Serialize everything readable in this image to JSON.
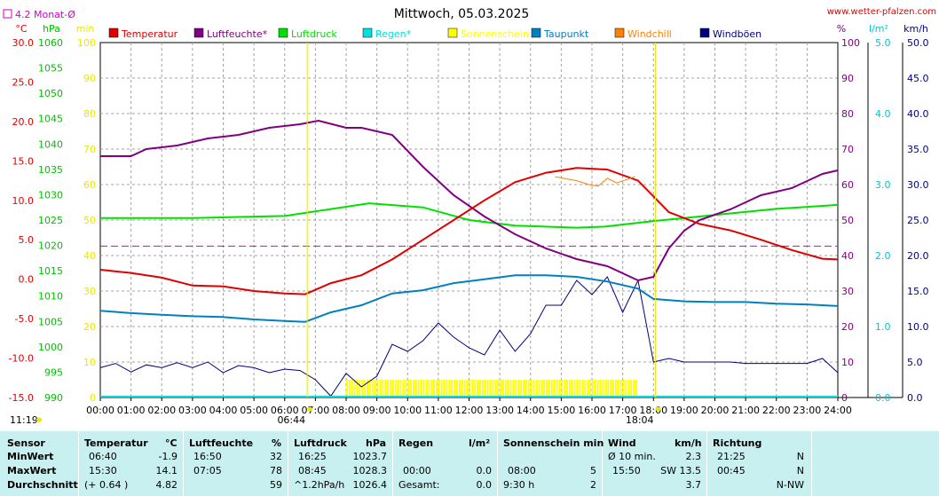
{
  "header": {
    "title": "Mittwoch, 05.03.2025",
    "site": "www.wetter-pfalzen.com",
    "avg_legend": "4.2 Monat-Ø"
  },
  "axes": {
    "temp_unit": "°C",
    "temp_ticks": [
      "30.0",
      "25.0",
      "20.0",
      "15.0",
      "10.0",
      "5.0",
      "0.0",
      "-5.0",
      "-10.0",
      "-15.0"
    ],
    "hpa_unit": "hPa",
    "hpa_ticks": [
      "1060",
      "1055",
      "1050",
      "1045",
      "1040",
      "1035",
      "1030",
      "1025",
      "1020",
      "1015",
      "1010",
      "1005",
      "1000",
      "995",
      "990"
    ],
    "min_unit": "min",
    "min_ticks": [
      "100",
      "90",
      "80",
      "70",
      "60",
      "50",
      "40",
      "30",
      "20",
      "10",
      "0"
    ],
    "pct_unit": "%",
    "pct_ticks": [
      "100",
      "90",
      "80",
      "70",
      "60",
      "50",
      "40",
      "30",
      "20",
      "10",
      "0"
    ],
    "rain_unit": "l/m²",
    "rain_ticks": [
      "5.0",
      "4.0",
      "3.0",
      "2.0",
      "1.0",
      "0.0"
    ],
    "kmh_unit": "km/h",
    "kmh_ticks": [
      "50.0",
      "45.0",
      "40.0",
      "35.0",
      "30.0",
      "25.0",
      "20.0",
      "15.0",
      "10.0",
      "5.0",
      "0.0"
    ],
    "x_ticks": [
      "00:00",
      "01:00",
      "02:00",
      "03:00",
      "04:00",
      "05:00",
      "06:00",
      "07:00",
      "08:00",
      "09:00",
      "10:00",
      "11:00",
      "12:00",
      "13:00",
      "14:00",
      "15:00",
      "16:00",
      "17:00",
      "18:00",
      "19:00",
      "20:00",
      "21:00",
      "22:00",
      "23:00",
      "24:00"
    ],
    "markers": {
      "moon": "11:19",
      "sunrise": "06:44",
      "sunset": "18:04"
    }
  },
  "legend": [
    {
      "label": "Temperatur",
      "color": "#e00000"
    },
    {
      "label": "Luftfeuchte*",
      "color": "#800080"
    },
    {
      "label": "Luftdruck",
      "color": "#00e000"
    },
    {
      "label": "Regen*",
      "color": "#00e0e0"
    },
    {
      "label": "Sonnenschein",
      "color": "#ffff00"
    },
    {
      "label": "Taupunkt",
      "color": "#0080c0"
    },
    {
      "label": "Windchill",
      "color": "#ff8000"
    },
    {
      "label": "Windböen",
      "color": "#000080"
    }
  ],
  "chart_data": {
    "type": "line",
    "x_range": [
      "00:00",
      "24:00"
    ],
    "y_ranges": {
      "temperature_c": [
        -15,
        30
      ],
      "pressure_hpa": [
        990,
        1060
      ],
      "sunshine_min": [
        0,
        100
      ],
      "humidity_pct": [
        0,
        100
      ],
      "rain_lm2": [
        0,
        5
      ],
      "wind_kmh": [
        0,
        50
      ]
    },
    "month_avg_temperature": 4.2,
    "grid": true,
    "series": [
      {
        "name": "Temperatur",
        "unit": "°C",
        "color": "#e00000",
        "points": [
          [
            0,
            1.2
          ],
          [
            1,
            0.8
          ],
          [
            2,
            0.2
          ],
          [
            3,
            -0.8
          ],
          [
            4,
            -0.9
          ],
          [
            5,
            -1.5
          ],
          [
            6,
            -1.8
          ],
          [
            6.67,
            -1.9
          ],
          [
            7.5,
            -0.5
          ],
          [
            8.5,
            0.5
          ],
          [
            9.5,
            2.5
          ],
          [
            10.5,
            5.0
          ],
          [
            11.5,
            7.5
          ],
          [
            12.5,
            10.0
          ],
          [
            13.5,
            12.3
          ],
          [
            14.5,
            13.5
          ],
          [
            15.5,
            14.1
          ],
          [
            16.5,
            13.9
          ],
          [
            17.5,
            12.5
          ],
          [
            18,
            10.5
          ],
          [
            18.5,
            8.5
          ],
          [
            19.5,
            7.0
          ],
          [
            20.5,
            6.2
          ],
          [
            21.5,
            5.0
          ],
          [
            22.5,
            3.7
          ],
          [
            23.5,
            2.6
          ],
          [
            24,
            2.5
          ]
        ]
      },
      {
        "name": "Luftfeuchte*",
        "unit": "%",
        "color": "#800080",
        "points": [
          [
            0,
            68
          ],
          [
            1,
            68
          ],
          [
            1.5,
            70
          ],
          [
            2.5,
            71
          ],
          [
            3.5,
            73
          ],
          [
            4.5,
            74
          ],
          [
            5.5,
            76
          ],
          [
            6.5,
            77
          ],
          [
            7.1,
            78
          ],
          [
            8,
            76
          ],
          [
            8.5,
            76
          ],
          [
            9.5,
            74
          ],
          [
            10.5,
            65
          ],
          [
            11.5,
            57
          ],
          [
            12.5,
            51
          ],
          [
            13.5,
            46
          ],
          [
            14.5,
            42
          ],
          [
            15.5,
            39
          ],
          [
            16.5,
            37
          ],
          [
            17.5,
            33
          ],
          [
            18,
            34
          ],
          [
            18.5,
            42
          ],
          [
            19,
            47
          ],
          [
            19.5,
            50
          ],
          [
            20.5,
            53
          ],
          [
            21.5,
            57
          ],
          [
            22.5,
            59
          ],
          [
            23,
            61
          ],
          [
            23.5,
            63
          ],
          [
            24,
            64
          ]
        ]
      },
      {
        "name": "Luftdruck",
        "unit": "hPa",
        "color": "#00e000",
        "points": [
          [
            0,
            1025.4
          ],
          [
            3,
            1025.4
          ],
          [
            6,
            1025.8
          ],
          [
            8.75,
            1028.3
          ],
          [
            10.5,
            1027.5
          ],
          [
            12,
            1025.0
          ],
          [
            13.5,
            1023.9
          ],
          [
            15.5,
            1023.5
          ],
          [
            16.42,
            1023.7
          ],
          [
            18,
            1024.8
          ],
          [
            20,
            1026.0
          ],
          [
            22,
            1027.2
          ],
          [
            24,
            1028.0
          ]
        ]
      },
      {
        "name": "Taupunkt",
        "unit": "°C",
        "color": "#0080c0",
        "points": [
          [
            0,
            -4.0
          ],
          [
            1,
            -4.3
          ],
          [
            2,
            -4.5
          ],
          [
            3,
            -4.7
          ],
          [
            4,
            -4.8
          ],
          [
            5,
            -5.1
          ],
          [
            6,
            -5.3
          ],
          [
            6.67,
            -5.4
          ],
          [
            7.5,
            -4.2
          ],
          [
            8.5,
            -3.3
          ],
          [
            9.5,
            -1.8
          ],
          [
            10.5,
            -1.4
          ],
          [
            11.5,
            -0.5
          ],
          [
            12.5,
            0.0
          ],
          [
            13.5,
            0.5
          ],
          [
            14.5,
            0.5
          ],
          [
            15.5,
            0.3
          ],
          [
            16.5,
            -0.3
          ],
          [
            17.5,
            -1.2
          ],
          [
            18,
            -2.5
          ],
          [
            19,
            -2.8
          ],
          [
            20,
            -2.9
          ],
          [
            21,
            -2.9
          ],
          [
            22,
            -3.1
          ],
          [
            23,
            -3.2
          ],
          [
            24,
            -3.4
          ]
        ]
      },
      {
        "name": "Windchill",
        "unit": "°C",
        "color": "#ff8000",
        "points": [
          [
            14.8,
            13.0
          ],
          [
            15.2,
            12.7
          ],
          [
            15.5,
            12.5
          ],
          [
            15.9,
            12.0
          ],
          [
            16.2,
            11.8
          ],
          [
            16.5,
            12.8
          ],
          [
            16.8,
            12.2
          ],
          [
            17.1,
            12.6
          ],
          [
            17.4,
            13.0
          ]
        ]
      },
      {
        "name": "Windböen",
        "unit": "km/h",
        "color": "#000080",
        "points": [
          [
            0,
            4.2
          ],
          [
            0.5,
            4.8
          ],
          [
            1,
            3.6
          ],
          [
            1.5,
            4.6
          ],
          [
            2,
            4.2
          ],
          [
            2.5,
            4.9
          ],
          [
            3,
            4.2
          ],
          [
            3.5,
            5.0
          ],
          [
            4,
            3.5
          ],
          [
            4.5,
            4.5
          ],
          [
            5,
            4.2
          ],
          [
            5.5,
            3.5
          ],
          [
            6,
            4.0
          ],
          [
            6.5,
            3.8
          ],
          [
            7,
            2.5
          ],
          [
            7.5,
            0.2
          ],
          [
            8,
            3.4
          ],
          [
            8.5,
            1.5
          ],
          [
            9,
            3.0
          ],
          [
            9.5,
            7.5
          ],
          [
            10,
            6.5
          ],
          [
            10.5,
            8.0
          ],
          [
            11,
            10.5
          ],
          [
            11.5,
            8.5
          ],
          [
            12,
            7.0
          ],
          [
            12.5,
            6.0
          ],
          [
            13,
            9.5
          ],
          [
            13.5,
            6.5
          ],
          [
            14,
            9.0
          ],
          [
            14.5,
            13.0
          ],
          [
            15,
            13.0
          ],
          [
            15.5,
            16.5
          ],
          [
            16,
            14.5
          ],
          [
            16.5,
            17.0
          ],
          [
            17,
            12.0
          ],
          [
            17.5,
            16.5
          ],
          [
            18,
            5.0
          ],
          [
            18.5,
            5.5
          ],
          [
            19,
            5.0
          ],
          [
            20,
            5.0
          ],
          [
            20.5,
            5.0
          ],
          [
            21,
            4.8
          ],
          [
            22,
            4.8
          ],
          [
            23,
            4.8
          ],
          [
            23.5,
            5.5
          ],
          [
            24,
            3.5
          ]
        ]
      }
    ],
    "sunshine": {
      "name": "Sonnenschein",
      "start": "08:00",
      "end": "17:30",
      "total": "9:30 h",
      "max_minutes": 5
    },
    "rain": {
      "name": "Regen*",
      "total_lm2": 0.0
    }
  },
  "stats": {
    "rows": [
      "Sensor",
      "MinWert",
      "MaxWert",
      "Durchschnitt"
    ],
    "temperatur": {
      "label": "Temperatur",
      "unit": "°C",
      "min_time": "06:40",
      "min_val": "-1.9",
      "max_time": "15:30",
      "max_val": "14.1",
      "avg_note": "(+ 0.64 )",
      "avg_val": "4.82"
    },
    "luftfeuchte": {
      "label": "Luftfeuchte",
      "unit": "%",
      "min_time": "16:50",
      "min_val": "32",
      "max_time": "07:05",
      "max_val": "78",
      "avg_val": "59"
    },
    "luftdruck": {
      "label": "Luftdruck",
      "unit": "hPa",
      "min_time": "16:25",
      "min_val": "1023.7",
      "max_time": "08:45",
      "max_val": "1028.3",
      "avg_note": "^1.2hPa/h",
      "avg_val": "1026.4"
    },
    "regen": {
      "label": "Regen",
      "unit": "l/m²",
      "max_time": "00:00",
      "max_val": "0.0",
      "avg_note": "Gesamt:",
      "avg_val": "0.0"
    },
    "sonne": {
      "label": "Sonnenschein min",
      "max_time": "08:00",
      "max_val": "5",
      "avg_note": "9:30 h",
      "avg_val": "2"
    },
    "wind": {
      "label": "Wind",
      "unit": "km/h",
      "min_note": "Ø 10 min.",
      "min_val": "2.3",
      "max_time": "15:50",
      "max_val": "SW 13.5",
      "avg_val": "3.7"
    },
    "richtung": {
      "label": "Richtung",
      "min_time": "21:25",
      "min_val": "N",
      "max_time": "00:45",
      "max_val": "N",
      "avg_val": "N-NW"
    }
  }
}
